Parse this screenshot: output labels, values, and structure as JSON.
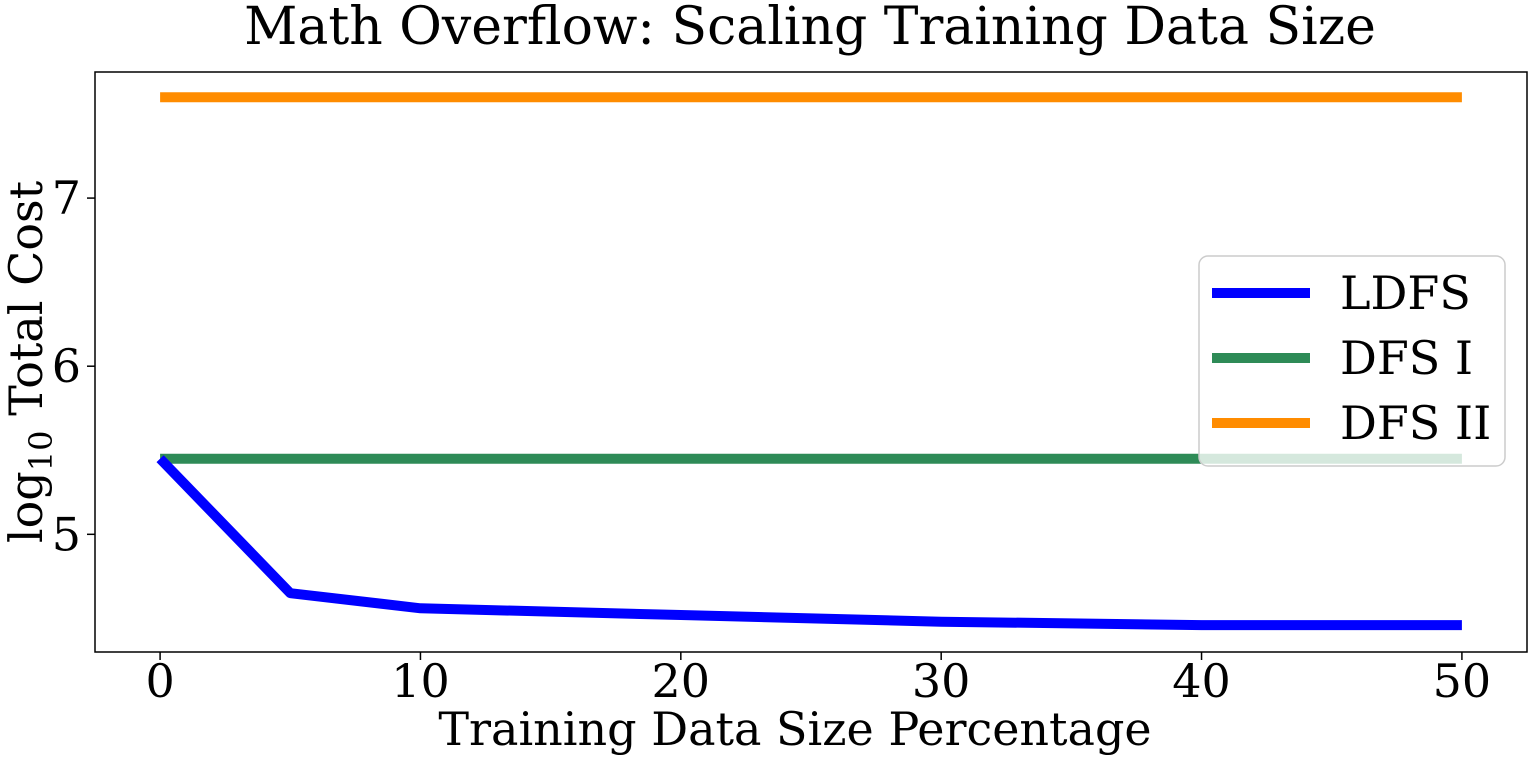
{
  "chart_data": {
    "type": "line",
    "title": "Math Overflow: Scaling Training Data Size",
    "xlabel": "Training Data Size Percentage",
    "ylabel_prefix": "log",
    "ylabel_subscript": "10",
    "ylabel_suffix": " Total Cost",
    "xlim": [
      -2.5,
      52.5
    ],
    "ylim": [
      4.3,
      7.75
    ],
    "xticks": [
      0,
      10,
      20,
      30,
      40,
      50
    ],
    "yticks": [
      5,
      6,
      7
    ],
    "grid": false,
    "legend_position": "center-right",
    "series": [
      {
        "name": "LDFS",
        "color": "#0000ff",
        "x": [
          0,
          5,
          10,
          20,
          30,
          40,
          50
        ],
        "y": [
          5.45,
          4.65,
          4.56,
          4.52,
          4.48,
          4.46,
          4.46
        ]
      },
      {
        "name": "DFS I",
        "color": "#2e8b57",
        "x": [
          0,
          50
        ],
        "y": [
          5.45,
          5.45
        ]
      },
      {
        "name": "DFS II",
        "color": "#ff8c00",
        "x": [
          0,
          50
        ],
        "y": [
          7.6,
          7.6
        ]
      }
    ]
  }
}
